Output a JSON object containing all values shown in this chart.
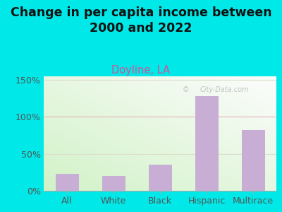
{
  "title": "Change in per capita income between\n2000 and 2022",
  "subtitle": "Doyline, LA",
  "categories": [
    "All",
    "White",
    "Black",
    "Hispanic",
    "Multirace"
  ],
  "values": [
    23,
    20,
    35,
    128,
    82
  ],
  "bar_color": "#c8aed4",
  "title_color": "#111111",
  "subtitle_color": "#cc5599",
  "outer_bg": "#00e8e8",
  "yticks": [
    0,
    50,
    100,
    150
  ],
  "ylim": [
    0,
    155
  ],
  "tick_fontsize": 9,
  "title_fontsize": 12.5,
  "subtitle_fontsize": 10.5
}
